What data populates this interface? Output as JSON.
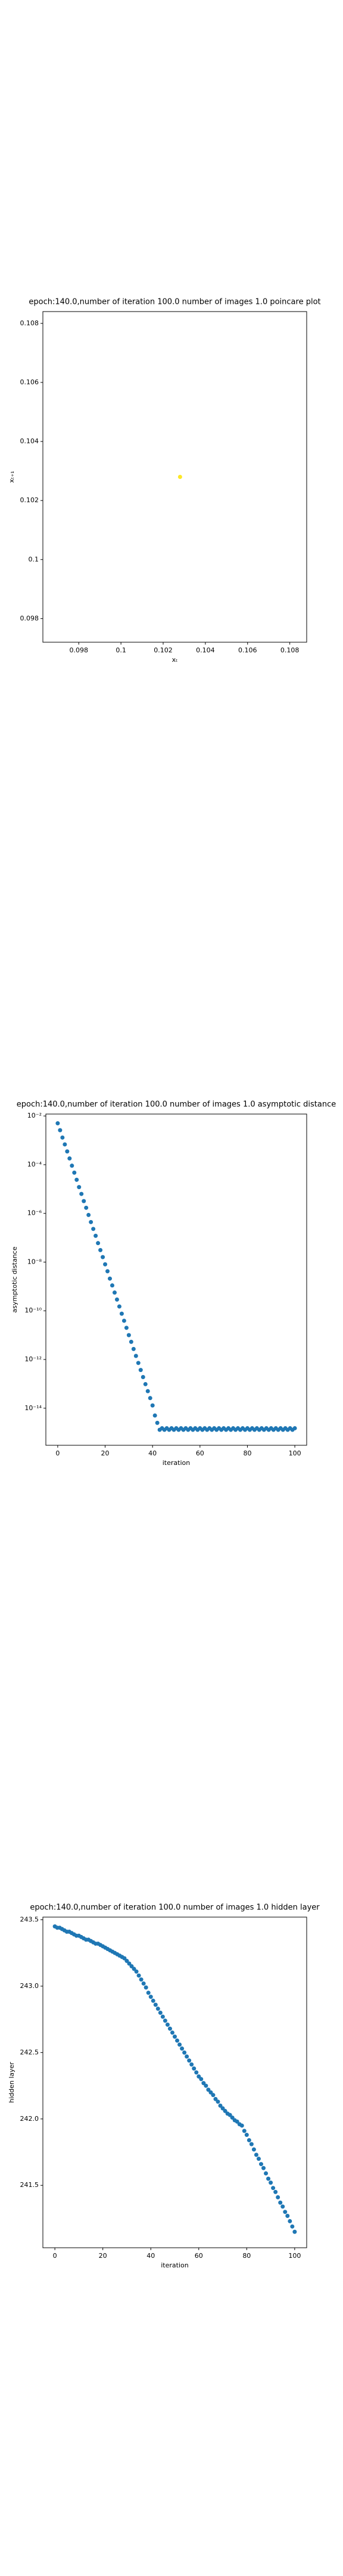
{
  "chart_data": [
    {
      "type": "scatter",
      "title": "epoch:140.0,number of iteration 100.0 number of images 1.0 poincare plot",
      "xlabel": "xₜ",
      "ylabel": "xₜ₊₁",
      "color": "#fde725",
      "x": [
        0.1028
      ],
      "values": [
        0.1028
      ],
      "xlim": [
        0.0963,
        0.1088
      ],
      "xticks": [
        0.098,
        0.1,
        0.102,
        0.104,
        0.106,
        0.108
      ],
      "ylim": [
        0.0972,
        0.1084
      ],
      "yticks": [
        0.098,
        0.1,
        0.102,
        0.104,
        0.106,
        0.108
      ]
    },
    {
      "type": "scatter",
      "title": "epoch:140.0,number of iteration 100.0  number of images 1.0 asymptotic distance",
      "xlabel": "iteration",
      "ylabel": "asymptotic distance",
      "color": "#1f77b4",
      "yscale": "log",
      "x": [
        0,
        1,
        2,
        3,
        4,
        5,
        6,
        7,
        8,
        9,
        10,
        11,
        12,
        13,
        14,
        15,
        16,
        17,
        18,
        19,
        20,
        21,
        22,
        23,
        24,
        25,
        26,
        27,
        28,
        29,
        30,
        31,
        32,
        33,
        34,
        35,
        36,
        37,
        38,
        39,
        40,
        41,
        42,
        43,
        44,
        45,
        46,
        47,
        48,
        49,
        50,
        51,
        52,
        53,
        54,
        55,
        56,
        57,
        58,
        59,
        60,
        61,
        62,
        63,
        64,
        65,
        66,
        67,
        68,
        69,
        70,
        71,
        72,
        73,
        74,
        75,
        76,
        77,
        78,
        79,
        80,
        81,
        82,
        83,
        84,
        85,
        86,
        87,
        88,
        89,
        90,
        91,
        92,
        93,
        94,
        95,
        96,
        97,
        98,
        99,
        100
      ],
      "values": [
        0.005,
        0.0026,
        0.0013,
        0.00068,
        0.00035,
        0.00018,
        9.1e-05,
        4.7e-05,
        2.4e-05,
        1.2e-05,
        6.3e-06,
        3.2e-06,
        1.7e-06,
        8.6e-07,
        4.4e-07,
        2.3e-07,
        1.2e-07,
        6e-08,
        3.1e-08,
        1.6e-08,
        8.1e-09,
        4.2e-09,
        2.1e-09,
        1.1e-09,
        5.6e-10,
        2.9e-10,
        1.5e-10,
        7.6e-11,
        3.9e-11,
        2e-11,
        1e-11,
        5.3e-12,
        2.7e-12,
        1.4e-12,
        7.2e-13,
        3.7e-13,
        1.9e-13,
        9.7e-14,
        5e-14,
        2.6e-14,
        1.3e-14,
        5e-15,
        2.5e-15,
        1.3e-15,
        1.5e-15,
        1.3e-15,
        1.5e-15,
        1.3e-15,
        1.5e-15,
        1.3e-15,
        1.5e-15,
        1.3e-15,
        1.5e-15,
        1.3e-15,
        1.5e-15,
        1.3e-15,
        1.5e-15,
        1.3e-15,
        1.5e-15,
        1.3e-15,
        1.5e-15,
        1.3e-15,
        1.5e-15,
        1.3e-15,
        1.5e-15,
        1.3e-15,
        1.5e-15,
        1.3e-15,
        1.5e-15,
        1.3e-15,
        1.5e-15,
        1.3e-15,
        1.5e-15,
        1.3e-15,
        1.5e-15,
        1.3e-15,
        1.5e-15,
        1.3e-15,
        1.5e-15,
        1.3e-15,
        1.5e-15,
        1.3e-15,
        1.5e-15,
        1.3e-15,
        1.5e-15,
        1.3e-15,
        1.5e-15,
        1.3e-15,
        1.5e-15,
        1.3e-15,
        1.5e-15,
        1.3e-15,
        1.5e-15,
        1.3e-15,
        1.5e-15,
        1.3e-15,
        1.5e-15,
        1.3e-15,
        1.5e-15,
        1.3e-15,
        1.5e-15
      ],
      "xlim": [
        -5,
        105
      ],
      "xticks": [
        0,
        20,
        40,
        60,
        80,
        100
      ],
      "ylim": [
        3e-16,
        0.012
      ],
      "yticks": [
        {
          "value": 0.01,
          "label": "10⁻²"
        },
        {
          "value": 0.0001,
          "label": "10⁻⁴"
        },
        {
          "value": 1e-06,
          "label": "10⁻⁶"
        },
        {
          "value": 1e-08,
          "label": "10⁻⁸"
        },
        {
          "value": 1e-10,
          "label": "10⁻¹⁰"
        },
        {
          "value": 1e-12,
          "label": "10⁻¹²"
        },
        {
          "value": 1e-14,
          "label": "10⁻¹⁴"
        }
      ]
    },
    {
      "type": "scatter",
      "title": "epoch:140.0,number of iteration 100.0  number of images 1.0 hidden layer",
      "xlabel": "iteration",
      "ylabel": "hidden layer",
      "color": "#1f77b4",
      "x": [
        0,
        1,
        2,
        3,
        4,
        5,
        6,
        7,
        8,
        9,
        10,
        11,
        12,
        13,
        14,
        15,
        16,
        17,
        18,
        19,
        20,
        21,
        22,
        23,
        24,
        25,
        26,
        27,
        28,
        29,
        30,
        31,
        32,
        33,
        34,
        35,
        36,
        37,
        38,
        39,
        40,
        41,
        42,
        43,
        44,
        45,
        46,
        47,
        48,
        49,
        50,
        51,
        52,
        53,
        54,
        55,
        56,
        57,
        58,
        59,
        60,
        61,
        62,
        63,
        64,
        65,
        66,
        67,
        68,
        69,
        70,
        71,
        72,
        73,
        74,
        75,
        76,
        77,
        78,
        79,
        80,
        81,
        82,
        83,
        84,
        85,
        86,
        87,
        88,
        89,
        90,
        91,
        92,
        93,
        94,
        95,
        96,
        97,
        98,
        99,
        100
      ],
      "values": [
        243.45,
        243.44,
        243.44,
        243.43,
        243.42,
        243.41,
        243.41,
        243.4,
        243.39,
        243.38,
        243.38,
        243.37,
        243.36,
        243.35,
        243.35,
        243.34,
        243.33,
        243.32,
        243.32,
        243.31,
        243.3,
        243.29,
        243.28,
        243.27,
        243.26,
        243.25,
        243.24,
        243.23,
        243.22,
        243.21,
        243.19,
        243.17,
        243.15,
        243.13,
        243.11,
        243.08,
        243.05,
        243.02,
        242.99,
        242.95,
        242.92,
        242.89,
        242.86,
        242.83,
        242.8,
        242.77,
        242.74,
        242.71,
        242.68,
        242.65,
        242.62,
        242.59,
        242.56,
        242.53,
        242.5,
        242.47,
        242.44,
        242.41,
        242.38,
        242.35,
        242.32,
        242.3,
        242.27,
        242.25,
        242.22,
        242.2,
        242.18,
        242.15,
        242.13,
        242.1,
        242.08,
        242.06,
        242.04,
        242.03,
        242.01,
        241.99,
        241.98,
        241.96,
        241.95,
        241.91,
        241.88,
        241.84,
        241.81,
        241.77,
        241.73,
        241.7,
        241.66,
        241.63,
        241.59,
        241.55,
        241.52,
        241.48,
        241.45,
        241.41,
        241.37,
        241.34,
        241.3,
        241.27,
        241.23,
        241.19,
        241.15
      ],
      "xlim": [
        -5,
        105
      ],
      "xticks": [
        0,
        20,
        40,
        60,
        80,
        100
      ],
      "ylim": [
        241.03,
        243.52
      ],
      "yticks": [
        {
          "value": 243.5,
          "label": "243.5"
        },
        {
          "value": 243,
          "label": "243.0"
        },
        {
          "value": 242.5,
          "label": "242.5"
        },
        {
          "value": 242,
          "label": "242.0"
        },
        {
          "value": 241.5,
          "label": "241.5"
        }
      ]
    }
  ]
}
